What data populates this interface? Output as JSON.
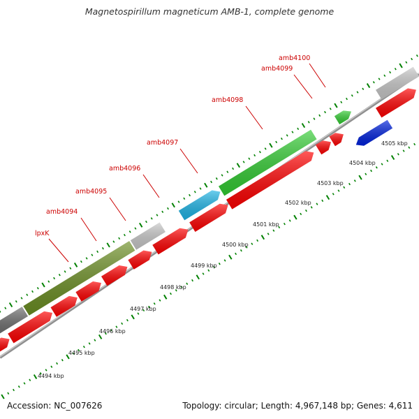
{
  "title": "Magnetospirillum magneticum AMB-1, complete genome",
  "footer": {
    "accession": "Accession: NC_007626",
    "summary": "Topology: circular; Length: 4,967,148 bp; Genes: 4,611"
  },
  "colors": {
    "label_red": "#cc0000",
    "cds_red": "#ff0000",
    "cds_green": "#33cc33",
    "cds_olive": "#6b8e23",
    "cds_cyan": "#1eb4e6",
    "cds_blue": "#0022dd",
    "cds_grey": "#c8c8c8",
    "cds_darkgrey": "#707070",
    "tick_green": "#008000",
    "backbone": "#909090"
  },
  "gene_labels": [
    {
      "name": "lpxK"
    },
    {
      "name": "amb4094"
    },
    {
      "name": "amb4095"
    },
    {
      "name": "amb4096"
    },
    {
      "name": "amb4097"
    },
    {
      "name": "amb4098"
    },
    {
      "name": "amb4099"
    },
    {
      "name": "amb4100"
    }
  ],
  "ruler_labels": [
    {
      "text": "4494 kbp"
    },
    {
      "text": "4495 kbp"
    },
    {
      "text": "4496 kbp"
    },
    {
      "text": "4497 kbp"
    },
    {
      "text": "4498 kbp"
    },
    {
      "text": "4499 kbp"
    },
    {
      "text": "4500 kbp"
    },
    {
      "text": "4501 kbp"
    },
    {
      "text": "4502 kbp"
    },
    {
      "text": "4503 kbp"
    },
    {
      "text": "4504 kbp"
    },
    {
      "text": "4505 kbp"
    }
  ]
}
